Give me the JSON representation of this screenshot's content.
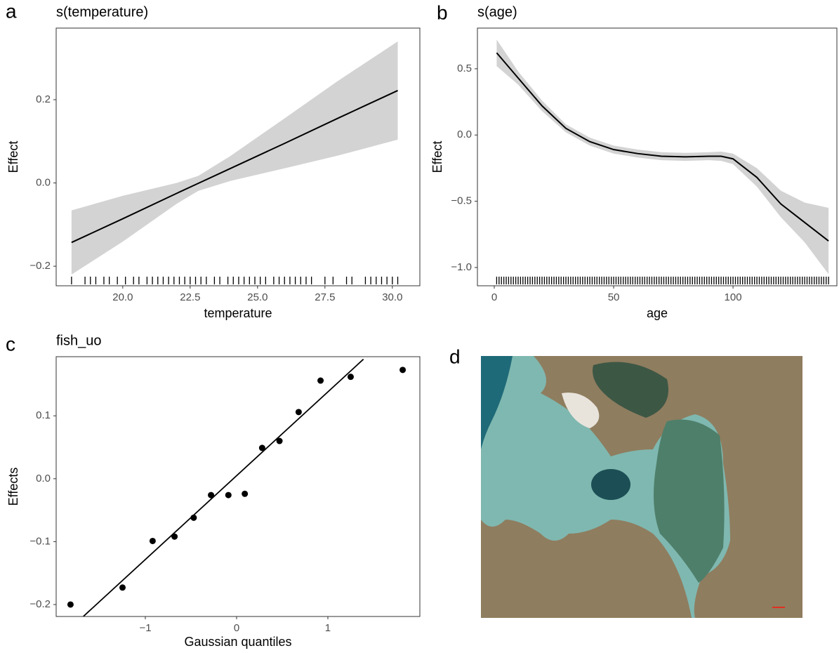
{
  "chart_data": [
    {
      "type": "line",
      "panel_label": "a",
      "title": "s(temperature)",
      "xlabel": "temperature",
      "ylabel": "Effect",
      "x": [
        18.1,
        20,
        22,
        22.8,
        24,
        26,
        28,
        30.2
      ],
      "series": [
        {
          "color": "#000000",
          "band_color": "#d3d3d3",
          "values": [
            -0.143,
            -0.086,
            -0.025,
            -0.001,
            0.035,
            0.095,
            0.156,
            0.222
          ],
          "upper": [
            -0.066,
            -0.031,
            0.0,
            0.017,
            0.065,
            0.155,
            0.246,
            0.34
          ],
          "lower": [
            -0.22,
            -0.141,
            -0.05,
            -0.019,
            0.005,
            0.035,
            0.066,
            0.104
          ]
        }
      ],
      "rug": [
        18.1,
        18.6,
        18.8,
        19.0,
        19.3,
        19.5,
        19.8,
        20.1,
        20.4,
        20.6,
        20.9,
        21.1,
        21.3,
        21.5,
        21.7,
        21.9,
        22.1,
        22.3,
        22.5,
        22.7,
        22.9,
        23.1,
        23.4,
        23.6,
        23.9,
        24.1,
        24.3,
        24.5,
        24.7,
        24.9,
        25.1,
        25.3,
        25.6,
        25.8,
        26.0,
        26.2,
        26.4,
        26.6,
        26.8,
        27.0,
        27.5,
        27.8,
        28.3,
        28.5,
        29.0,
        29.2,
        29.4,
        29.6,
        29.8,
        30.0,
        30.2
      ],
      "xlim": [
        17.53,
        31.02
      ],
      "ylim": [
        -0.247,
        0.372
      ],
      "xticks": [
        {
          "value": 20,
          "label": "20.0"
        },
        22.5,
        {
          "value": 25,
          "label": "25.0"
        },
        27.5,
        {
          "value": 30,
          "label": "30.0"
        }
      ],
      "yticks": [
        {
          "value": -0.2,
          "label": "−0.2"
        },
        {
          "value": 0,
          "label": "0.0"
        },
        0.2
      ],
      "grid": false
    },
    {
      "type": "line",
      "panel_label": "b",
      "title": "s(age)",
      "xlabel": "age",
      "ylabel": "Effect",
      "x": [
        1,
        10,
        20,
        30,
        40,
        50,
        60,
        70,
        80,
        90,
        95,
        100,
        110,
        120,
        130,
        140
      ],
      "series": [
        {
          "color": "#000000",
          "band_color": "#d3d3d3",
          "values": [
            0.62,
            0.43,
            0.22,
            0.05,
            -0.05,
            -0.11,
            -0.14,
            -0.16,
            -0.165,
            -0.16,
            -0.16,
            -0.18,
            -0.32,
            -0.52,
            -0.66,
            -0.8
          ],
          "upper": [
            0.72,
            0.48,
            0.26,
            0.08,
            -0.02,
            -0.08,
            -0.11,
            -0.13,
            -0.135,
            -0.13,
            -0.125,
            -0.14,
            -0.25,
            -0.42,
            -0.51,
            -0.55
          ],
          "lower": [
            0.52,
            0.38,
            0.18,
            0.02,
            -0.08,
            -0.14,
            -0.17,
            -0.19,
            -0.195,
            -0.19,
            -0.195,
            -0.22,
            -0.39,
            -0.62,
            -0.81,
            -1.05
          ]
        }
      ],
      "rug": [
        1,
        2,
        3,
        4,
        5,
        6,
        7,
        8,
        9,
        10,
        11,
        12,
        13,
        14,
        15,
        16,
        17,
        18,
        19,
        20,
        21,
        22,
        23,
        24,
        25,
        26,
        27,
        28,
        29,
        30,
        31,
        32,
        33,
        34,
        35,
        36,
        37,
        38,
        39,
        40,
        41,
        42,
        43,
        44,
        45,
        46,
        47,
        48,
        49,
        50,
        51,
        52,
        53,
        54,
        55,
        56,
        57,
        58,
        59,
        60,
        61,
        62,
        63,
        64,
        65,
        66,
        67,
        68,
        69,
        70,
        71,
        72,
        73,
        74,
        75,
        76,
        77,
        78,
        79,
        80,
        81,
        82,
        83,
        84,
        85,
        86,
        87,
        88,
        89,
        90,
        91,
        92,
        93,
        94,
        95,
        96,
        97,
        98,
        99,
        100,
        101,
        102,
        103,
        104,
        105,
        106,
        107,
        108,
        109,
        110,
        111,
        112,
        113,
        114,
        115,
        116,
        117,
        118,
        119,
        120,
        121,
        122,
        123,
        124,
        125,
        126,
        127,
        128,
        129,
        130,
        131,
        132,
        133,
        134,
        135,
        136,
        137,
        138,
        139,
        140
      ],
      "xlim": [
        -7.06,
        143.5
      ],
      "ylim": [
        -1.138,
        0.807
      ],
      "xticks": [
        0,
        50,
        100
      ],
      "yticks": [
        {
          "value": -1,
          "label": "−1.0"
        },
        {
          "value": -0.5,
          "label": "−0.5"
        },
        {
          "value": 0,
          "label": "0.0"
        },
        0.5
      ],
      "grid": false
    },
    {
      "type": "scatter",
      "panel_label": "c",
      "title": "fish_uo",
      "xlabel": "Gaussian quantiles",
      "ylabel": "Effects",
      "x": [
        -1.82,
        -1.25,
        -0.92,
        -0.68,
        -0.47,
        -0.28,
        -0.09,
        0.09,
        0.28,
        0.47,
        0.68,
        0.92,
        1.25,
        1.82
      ],
      "series": [
        {
          "color": "#000000",
          "values": [
            -0.2,
            -0.173,
            -0.099,
            -0.092,
            -0.062,
            -0.026,
            -0.026,
            -0.024,
            0.049,
            0.06,
            0.106,
            0.156,
            0.162,
            0.173
          ]
        }
      ],
      "reference_line": {
        "x": [
          -1.68,
          1.39
        ],
        "y": [
          -0.219,
          0.19
        ],
        "color": "#000000"
      },
      "xlim": [
        -1.977,
        2.008
      ],
      "ylim": [
        -0.219,
        0.194
      ],
      "xticks": [
        {
          "value": -1,
          "label": "−1"
        },
        0,
        1
      ],
      "yticks": [
        {
          "value": -0.2,
          "label": "−0.2"
        },
        {
          "value": -0.1,
          "label": "−0.1"
        },
        {
          "value": 0,
          "label": "0.0"
        },
        0.1
      ],
      "grid": false
    }
  ],
  "image_panel": {
    "panel_label": "d"
  }
}
